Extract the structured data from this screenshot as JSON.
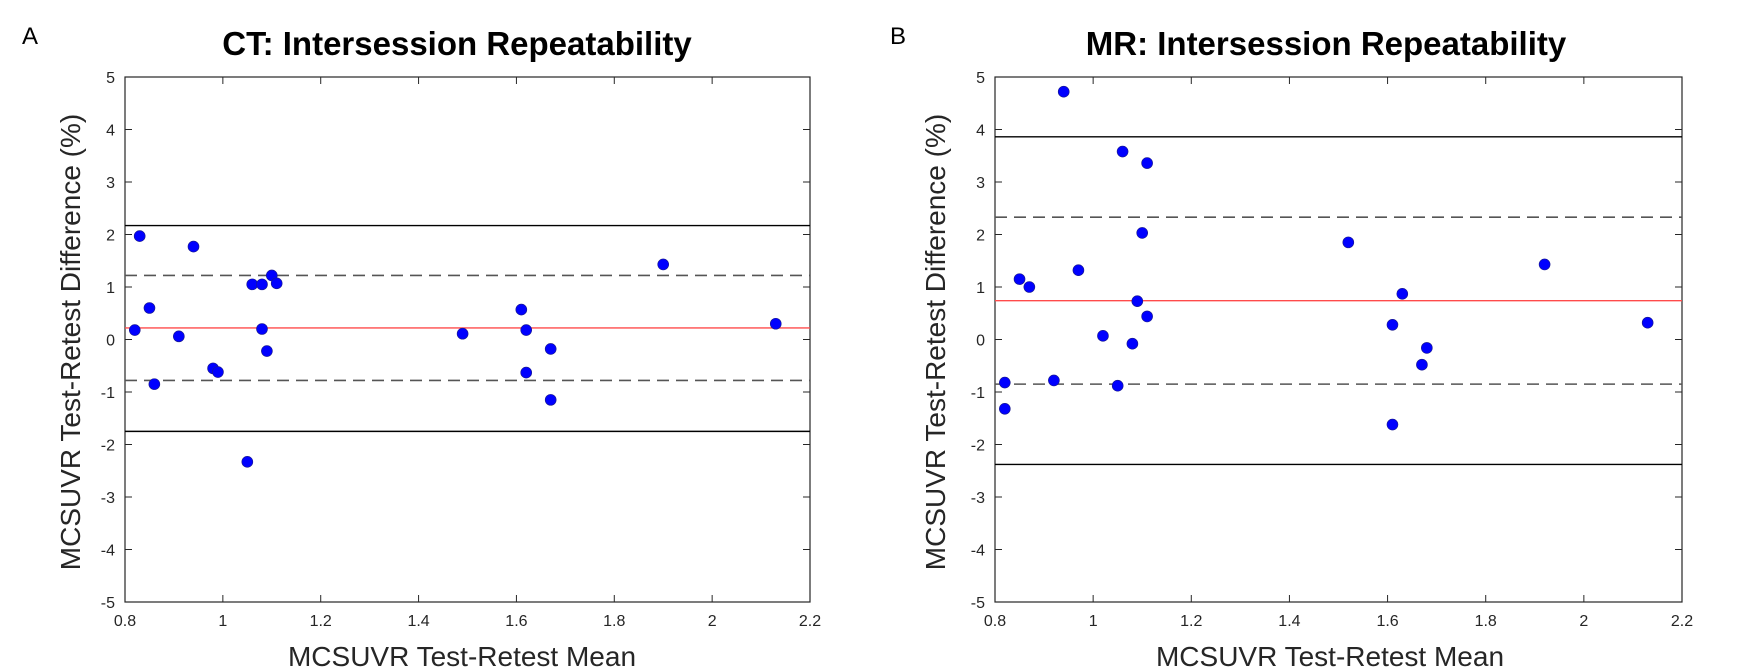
{
  "figure": {
    "colors": {
      "point": "#0000ff",
      "mean_line": "#ff4b4b",
      "limit_line": "#000000",
      "dashed_line": "#555555"
    }
  },
  "chart_data": [
    {
      "panel_label": "A",
      "type": "scatter",
      "title": "CT: Intersession Repeatability",
      "xlabel": "MCSUVR Test-Retest Mean",
      "ylabel": "MCSUVR Test-Retest Difference (%)",
      "xlim": [
        0.8,
        2.2
      ],
      "ylim": [
        -5,
        5
      ],
      "xticks": [
        0.8,
        1,
        1.2,
        1.4,
        1.6,
        1.8,
        2,
        2.2
      ],
      "xtick_labels": [
        "0.8",
        "1",
        "1.2",
        "1.4",
        "1.6",
        "1.8",
        "2",
        "2.2"
      ],
      "yticks": [
        5,
        4,
        3,
        2,
        1,
        0,
        -1,
        -2,
        -3,
        -4,
        -5
      ],
      "ytick_labels": [
        "5",
        "4",
        "3",
        "2",
        "1",
        "0",
        "-1",
        "-2",
        "-3",
        "-4",
        "-5"
      ],
      "reference_lines": [
        {
          "name": "mean",
          "y": 0.22,
          "style": "solid",
          "color": "#ff4b4b"
        },
        {
          "name": "upper-limit",
          "y": 2.17,
          "style": "solid",
          "color": "#000000"
        },
        {
          "name": "lower-limit",
          "y": -1.75,
          "style": "solid",
          "color": "#000000"
        },
        {
          "name": "upper-dashed",
          "y": 1.22,
          "style": "dashed",
          "color": "#555555"
        },
        {
          "name": "lower-dashed",
          "y": -0.78,
          "style": "dashed",
          "color": "#555555"
        }
      ],
      "points": [
        {
          "x": 0.82,
          "y": 0.18
        },
        {
          "x": 0.83,
          "y": 1.97
        },
        {
          "x": 0.85,
          "y": 0.6
        },
        {
          "x": 0.86,
          "y": -0.85
        },
        {
          "x": 0.91,
          "y": 0.06
        },
        {
          "x": 0.94,
          "y": 1.77
        },
        {
          "x": 0.98,
          "y": -0.55
        },
        {
          "x": 0.99,
          "y": -0.62
        },
        {
          "x": 1.05,
          "y": -2.33
        },
        {
          "x": 1.06,
          "y": 1.05
        },
        {
          "x": 1.08,
          "y": 1.05
        },
        {
          "x": 1.08,
          "y": 0.2
        },
        {
          "x": 1.09,
          "y": -0.22
        },
        {
          "x": 1.1,
          "y": 1.22
        },
        {
          "x": 1.11,
          "y": 1.07
        },
        {
          "x": 1.49,
          "y": 0.11
        },
        {
          "x": 1.61,
          "y": 0.57
        },
        {
          "x": 1.62,
          "y": 0.18
        },
        {
          "x": 1.62,
          "y": -0.63
        },
        {
          "x": 1.67,
          "y": -0.18
        },
        {
          "x": 1.67,
          "y": -1.15
        },
        {
          "x": 1.9,
          "y": 1.43
        },
        {
          "x": 2.13,
          "y": 0.3
        }
      ]
    },
    {
      "panel_label": "B",
      "type": "scatter",
      "title": "MR: Intersession Repeatability",
      "xlabel": "MCSUVR Test-Retest Mean",
      "ylabel": "MCSUVR Test-Retest Difference (%)",
      "xlim": [
        0.8,
        2.2
      ],
      "ylim": [
        -5,
        5
      ],
      "xticks": [
        0.8,
        1,
        1.2,
        1.4,
        1.6,
        1.8,
        2,
        2.2
      ],
      "xtick_labels": [
        "0.8",
        "1",
        "1.2",
        "1.4",
        "1.6",
        "1.8",
        "2",
        "2.2"
      ],
      "yticks": [
        5,
        4,
        3,
        2,
        1,
        0,
        -1,
        -2,
        -3,
        -4,
        -5
      ],
      "ytick_labels": [
        "5",
        "4",
        "3",
        "2",
        "1",
        "0",
        "-1",
        "-2",
        "-3",
        "-4",
        "-5"
      ],
      "reference_lines": [
        {
          "name": "mean",
          "y": 0.74,
          "style": "solid",
          "color": "#ff4b4b"
        },
        {
          "name": "upper-limit",
          "y": 3.86,
          "style": "solid",
          "color": "#000000"
        },
        {
          "name": "lower-limit",
          "y": -2.38,
          "style": "solid",
          "color": "#000000"
        },
        {
          "name": "upper-dashed",
          "y": 2.33,
          "style": "dashed",
          "color": "#555555"
        },
        {
          "name": "lower-dashed",
          "y": -0.85,
          "style": "dashed",
          "color": "#555555"
        }
      ],
      "points": [
        {
          "x": 0.82,
          "y": -1.32
        },
        {
          "x": 0.82,
          "y": -0.82
        },
        {
          "x": 0.85,
          "y": 1.15
        },
        {
          "x": 0.87,
          "y": 1.0
        },
        {
          "x": 0.92,
          "y": -0.78
        },
        {
          "x": 0.94,
          "y": 4.72
        },
        {
          "x": 0.97,
          "y": 1.32
        },
        {
          "x": 1.02,
          "y": 0.07
        },
        {
          "x": 1.05,
          "y": -0.88
        },
        {
          "x": 1.06,
          "y": 3.58
        },
        {
          "x": 1.08,
          "y": -0.08
        },
        {
          "x": 1.09,
          "y": 0.73
        },
        {
          "x": 1.1,
          "y": 2.03
        },
        {
          "x": 1.11,
          "y": 0.44
        },
        {
          "x": 1.11,
          "y": 3.36
        },
        {
          "x": 1.52,
          "y": 1.85
        },
        {
          "x": 1.61,
          "y": 0.28
        },
        {
          "x": 1.61,
          "y": -1.62
        },
        {
          "x": 1.63,
          "y": 0.87
        },
        {
          "x": 1.67,
          "y": -0.48
        },
        {
          "x": 1.68,
          "y": -0.16
        },
        {
          "x": 1.92,
          "y": 1.43
        },
        {
          "x": 2.13,
          "y": 0.32
        }
      ]
    }
  ]
}
